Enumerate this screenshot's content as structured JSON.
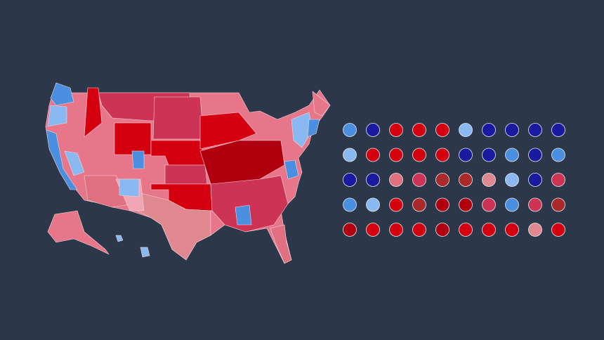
{
  "dot_grid": {
    "rows": [
      [
        "#4a8fe0",
        "#1a1aa0",
        "#d40010",
        "#d40010",
        "#d40010",
        "#8ab8f0",
        "#1a1aa0",
        "#1a1aa0",
        "#1a1aa0",
        "#1a1aa0"
      ],
      [
        "#8ab8f0",
        "#d40010",
        "#d40010",
        "#d40010",
        "#d40010",
        "#1a1aa0",
        "#1a1aa0",
        "#4a8fe0",
        "#1a1aa0",
        "#4a8fe0"
      ],
      [
        "#1a1aa0",
        "#1a1aa0",
        "#e0707f",
        "#cc3355",
        "#a82a2a",
        "#a82a2a",
        "#e08890",
        "#8ab8f0",
        "#1a1aa0",
        "#cc3355"
      ],
      [
        "#4a8fe0",
        "#8ab8f0",
        "#d40010",
        "#a82a2a",
        "#b00010",
        "#b00010",
        "#cc3355",
        "#4a8fe0",
        "#cc3355",
        "#a82a2a"
      ],
      [
        "#b00010",
        "#d40010",
        "#d40010",
        "#d40010",
        "#b00010",
        "#d40010",
        "#d40010",
        "#d40010",
        "#e08890",
        "#d40010"
      ]
    ]
  }
}
